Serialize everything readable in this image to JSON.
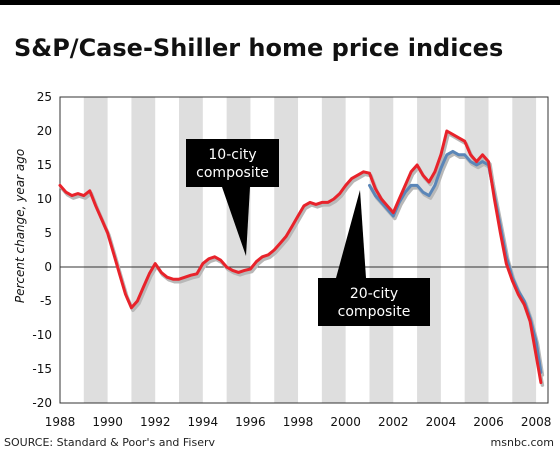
{
  "title": "S&P/Case-Shiller home price indices",
  "source": "SOURCE: Standard & Poor's and Fiserv",
  "credit": "msnbc.com",
  "chart_data": {
    "type": "line",
    "title": "S&P/Case-Shiller home price indices",
    "xlabel": "",
    "ylabel": "Percent change, year ago",
    "xlim": [
      1988,
      2008.5
    ],
    "ylim": [
      -20,
      25
    ],
    "x_ticks": [
      1988,
      1990,
      1992,
      1994,
      1996,
      1998,
      2000,
      2002,
      2004,
      2006,
      2008
    ],
    "y_ticks": [
      25,
      20,
      15,
      10,
      5,
      0,
      -5,
      -10,
      -15,
      -20
    ],
    "colors": {
      "ten_city": "#e8232b",
      "twenty_city": "#5b86b8",
      "shadow": "#b8b8b8",
      "band": "#dedede",
      "callout_bg": "#000000"
    },
    "grid": false,
    "series": [
      {
        "name": "10-city composite",
        "x": [
          1988,
          1988.25,
          1988.5,
          1988.75,
          1989,
          1989.25,
          1989.5,
          1989.75,
          1990,
          1990.25,
          1990.5,
          1990.75,
          1991,
          1991.25,
          1991.5,
          1991.75,
          1992,
          1992.25,
          1992.5,
          1992.75,
          1993,
          1993.25,
          1993.5,
          1993.75,
          1994,
          1994.25,
          1994.5,
          1994.75,
          1995,
          1995.25,
          1995.5,
          1995.75,
          1996,
          1996.25,
          1996.5,
          1996.75,
          1997,
          1997.25,
          1997.5,
          1997.75,
          1998,
          1998.25,
          1998.5,
          1998.75,
          1999,
          1999.25,
          1999.5,
          1999.75,
          2000,
          2000.25,
          2000.5,
          2000.75,
          2001,
          2001.25,
          2001.5,
          2001.75,
          2002,
          2002.25,
          2002.5,
          2002.75,
          2003,
          2003.25,
          2003.5,
          2003.75,
          2004,
          2004.25,
          2004.5,
          2004.75,
          2005,
          2005.25,
          2005.5,
          2005.75,
          2006,
          2006.25,
          2006.5,
          2006.75,
          2007,
          2007.25,
          2007.5,
          2007.75,
          2008,
          2008.2
        ],
        "values": [
          12.0,
          11.0,
          10.5,
          10.8,
          10.5,
          11.2,
          9.0,
          7.0,
          5.0,
          2.0,
          -1.0,
          -4.0,
          -6.0,
          -5.0,
          -3.0,
          -1.0,
          0.5,
          -0.8,
          -1.5,
          -1.8,
          -1.8,
          -1.5,
          -1.2,
          -1.0,
          0.5,
          1.2,
          1.5,
          1.0,
          0.0,
          -0.5,
          -0.8,
          -0.5,
          -0.3,
          0.8,
          1.5,
          1.8,
          2.5,
          3.5,
          4.5,
          6.0,
          7.5,
          9.0,
          9.5,
          9.2,
          9.5,
          9.5,
          10.0,
          10.8,
          12.0,
          13.0,
          13.5,
          14.0,
          13.8,
          11.5,
          10.0,
          9.0,
          8.0,
          10.0,
          12.0,
          14.0,
          15.0,
          13.5,
          12.5,
          14.0,
          16.5,
          20.0,
          19.5,
          19.0,
          18.5,
          16.5,
          15.5,
          16.5,
          15.5,
          10.0,
          5.0,
          0.5,
          -2.0,
          -4.0,
          -5.5,
          -8.0,
          -13.0,
          -17.0
        ]
      },
      {
        "name": "20-city composite",
        "x": [
          2001,
          2001.25,
          2001.5,
          2001.75,
          2002,
          2002.25,
          2002.5,
          2002.75,
          2003,
          2003.25,
          2003.5,
          2003.75,
          2004,
          2004.25,
          2004.5,
          2004.75,
          2005,
          2005.25,
          2005.5,
          2005.75,
          2006,
          2006.25,
          2006.5,
          2006.75,
          2007,
          2007.25,
          2007.5,
          2007.75,
          2008,
          2008.2
        ],
        "values": [
          12.0,
          10.5,
          9.5,
          8.5,
          7.5,
          9.5,
          11.0,
          12.0,
          12.0,
          11.0,
          10.5,
          12.0,
          14.5,
          16.5,
          17.0,
          16.5,
          16.5,
          15.5,
          15.0,
          15.5,
          15.0,
          10.5,
          6.0,
          1.5,
          -1.5,
          -3.5,
          -5.0,
          -7.5,
          -11.0,
          -15.5
        ]
      }
    ],
    "annotations": [
      {
        "text_lines": [
          "10-city",
          "composite"
        ]
      },
      {
        "text_lines": [
          "20-city",
          "composite"
        ]
      }
    ]
  }
}
